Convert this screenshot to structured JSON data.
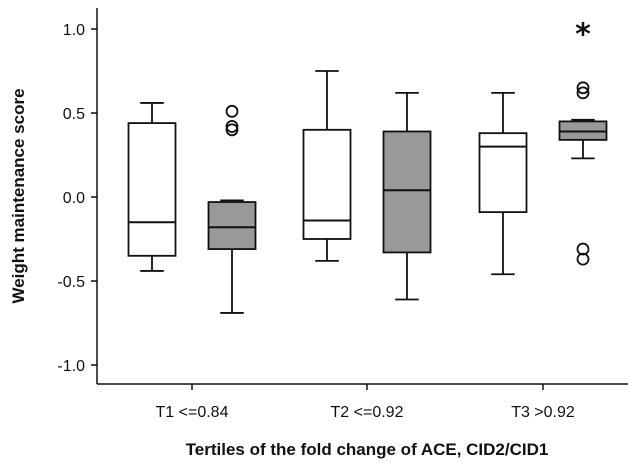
{
  "chart_data": {
    "type": "box",
    "xlabel": "Tertiles of the fold change of ACE, CID2/CID1",
    "ylabel": "Weight maintenance score",
    "ylim": [
      -1.1,
      1.15
    ],
    "yticks": [
      1.0,
      0.5,
      0.0,
      -0.5,
      -1.0
    ],
    "ytick_labels": [
      "1.0",
      "0.5",
      "0.0",
      "-0.5",
      "-1.0"
    ],
    "categories": [
      "T1 <=0.84",
      "T2 <=0.92",
      "T3 >0.92"
    ],
    "series": [
      {
        "color": "#ffffff",
        "boxes": [
          {
            "category": "T1 <=0.84",
            "whisker_low": -0.44,
            "q1": -0.35,
            "median": -0.15,
            "q3": 0.44,
            "whisker_high": 0.56,
            "outliers": [],
            "extremes": []
          },
          {
            "category": "T2 <=0.92",
            "whisker_low": -0.38,
            "q1": -0.25,
            "median": -0.14,
            "q3": 0.4,
            "whisker_high": 0.75,
            "outliers": [],
            "extremes": []
          },
          {
            "category": "T3 >0.92",
            "whisker_low": -0.46,
            "q1": -0.09,
            "median": 0.3,
            "q3": 0.38,
            "whisker_high": 0.62,
            "outliers": [],
            "extremes": []
          }
        ]
      },
      {
        "color": "#999999",
        "boxes": [
          {
            "category": "T1 <=0.84",
            "whisker_low": -0.69,
            "q1": -0.31,
            "median": -0.18,
            "q3": -0.03,
            "whisker_high": -0.02,
            "outliers": [
              0.51,
              0.42,
              0.4
            ],
            "extremes": []
          },
          {
            "category": "T2 <=0.92",
            "whisker_low": -0.61,
            "q1": -0.33,
            "median": 0.04,
            "q3": 0.39,
            "whisker_high": 0.62,
            "outliers": [],
            "extremes": []
          },
          {
            "category": "T3 >0.92",
            "whisker_low": 0.23,
            "q1": 0.34,
            "median": 0.39,
            "q3": 0.45,
            "whisker_high": 0.46,
            "outliers": [
              0.65,
              0.62,
              -0.31,
              -0.37
            ],
            "extremes": [
              0.99
            ]
          }
        ]
      }
    ],
    "grid": false,
    "legend": "none",
    "extreme_marker": "*"
  }
}
